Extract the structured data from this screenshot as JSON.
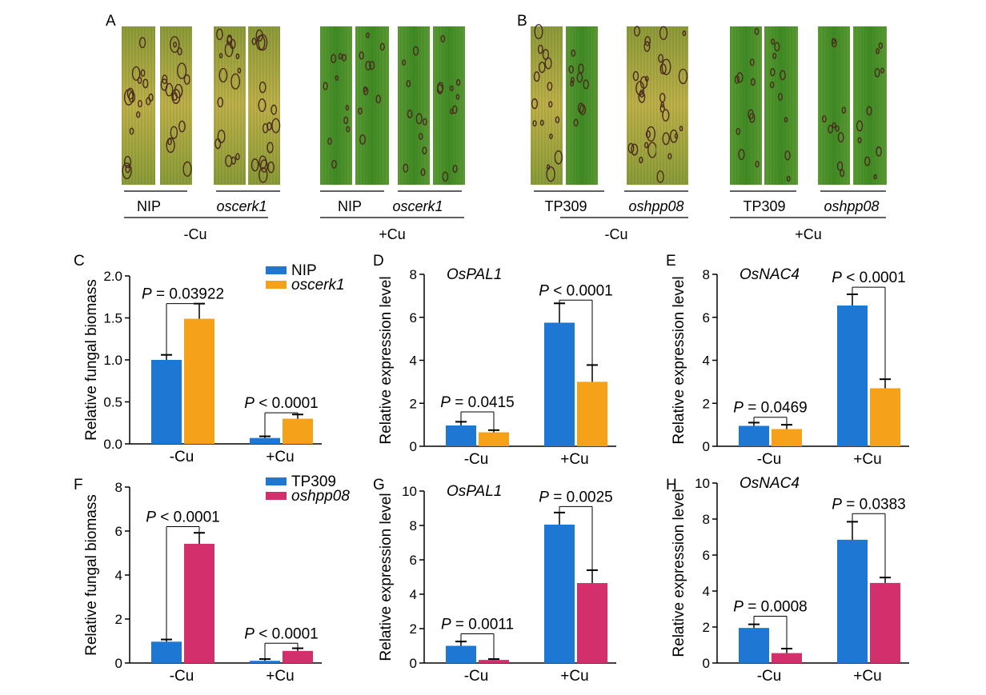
{
  "colors": {
    "blue": "#1f77d4",
    "orange": "#f6a11a",
    "magenta": "#d42f6d",
    "leaf_green": "#4f8f2c",
    "leaf_yellow": "#b7a64a",
    "lesion": "#4a2a1e"
  },
  "photos": {
    "A": {
      "label": "A",
      "groups": [
        {
          "genotype": "NIP",
          "italic": false
        },
        {
          "genotype": "oscerk1",
          "italic": true
        },
        {
          "genotype": "NIP",
          "italic": false
        },
        {
          "genotype": "oscerk1",
          "italic": true
        }
      ],
      "treatments": [
        "-Cu",
        "+Cu"
      ]
    },
    "B": {
      "label": "B",
      "groups": [
        {
          "genotype": "TP309",
          "italic": false
        },
        {
          "genotype": "oshpp08",
          "italic": true
        },
        {
          "genotype": "TP309",
          "italic": false
        },
        {
          "genotype": "oshpp08",
          "italic": true
        }
      ],
      "treatments": [
        "-Cu",
        "+Cu"
      ]
    }
  },
  "chart_data": [
    {
      "id": "C",
      "label": "C",
      "type": "bar",
      "title": "",
      "ylabel": "Relative fungal biomass",
      "categories": [
        "-Cu",
        "+Cu"
      ],
      "ylim": [
        0,
        2.0
      ],
      "yticks": [
        "0.0",
        "0.5",
        "1.0",
        "1.5",
        "2.0"
      ],
      "legend": [
        "NIP",
        "oscerk1"
      ],
      "series": [
        {
          "name": "NIP",
          "italic": false,
          "color": "#1f77d4",
          "values": [
            1.0,
            0.07
          ],
          "errors": [
            0.06,
            0.02
          ]
        },
        {
          "name": "oscerk1",
          "italic": true,
          "color": "#f6a11a",
          "values": [
            1.49,
            0.3
          ],
          "errors": [
            0.18,
            0.05
          ]
        }
      ],
      "annotations": [
        {
          "category": 0,
          "p": "P",
          "text": " = 0.03922",
          "level": 1.67
        },
        {
          "category": 1,
          "p": "P",
          "text": " < 0.0001",
          "level": 0.37
        }
      ]
    },
    {
      "id": "D",
      "label": "D",
      "type": "bar",
      "title": "OsPAL1",
      "ylabel": "Relative expression level",
      "categories": [
        "-Cu",
        "+Cu"
      ],
      "ylim": [
        0,
        8
      ],
      "yticks": [
        "0",
        "2",
        "4",
        "6",
        "8"
      ],
      "legend": [],
      "series": [
        {
          "name": "",
          "italic": false,
          "color": "#1f77d4",
          "values": [
            0.97,
            5.75
          ],
          "errors": [
            0.17,
            0.9
          ]
        },
        {
          "name": "",
          "italic": true,
          "color": "#f6a11a",
          "values": [
            0.65,
            3.0
          ],
          "errors": [
            0.1,
            0.78
          ]
        }
      ],
      "annotations": [
        {
          "category": 0,
          "p": "P",
          "text": " = 0.0415",
          "level": 1.6
        },
        {
          "category": 1,
          "p": "P",
          "text": " < 0.0001",
          "level": 6.8
        }
      ]
    },
    {
      "id": "E",
      "label": "E",
      "type": "bar",
      "title": "OsNAC4",
      "ylabel": "Relative expression level",
      "categories": [
        "-Cu",
        "+Cu"
      ],
      "ylim": [
        0,
        8
      ],
      "yticks": [
        "0",
        "2",
        "4",
        "6",
        "8"
      ],
      "legend": [],
      "series": [
        {
          "name": "",
          "italic": false,
          "color": "#1f77d4",
          "values": [
            0.95,
            6.55
          ],
          "errors": [
            0.15,
            0.52
          ]
        },
        {
          "name": "",
          "italic": true,
          "color": "#f6a11a",
          "values": [
            0.8,
            2.7
          ],
          "errors": [
            0.2,
            0.42
          ]
        }
      ],
      "annotations": [
        {
          "category": 0,
          "p": "P",
          "text": " = 0.0469",
          "level": 1.35
        },
        {
          "category": 1,
          "p": "P",
          "text": " < 0.0001",
          "level": 7.4
        }
      ]
    },
    {
      "id": "F",
      "label": "F",
      "type": "bar",
      "title": "",
      "ylabel": "Relative fungal biomass",
      "categories": [
        "-Cu",
        "+Cu"
      ],
      "ylim": [
        0,
        8
      ],
      "yticks": [
        "0",
        "2",
        "4",
        "6",
        "8"
      ],
      "legend": [
        "TP309",
        "oshpp08"
      ],
      "series": [
        {
          "name": "TP309",
          "italic": false,
          "color": "#1f77d4",
          "values": [
            0.97,
            0.1
          ],
          "errors": [
            0.1,
            0.08
          ]
        },
        {
          "name": "oshpp08",
          "italic": true,
          "color": "#d42f6d",
          "values": [
            5.42,
            0.55
          ],
          "errors": [
            0.5,
            0.12
          ]
        }
      ],
      "annotations": [
        {
          "category": 0,
          "p": "P",
          "text": " < 0.0001",
          "level": 6.2
        },
        {
          "category": 1,
          "p": "P",
          "text": " < 0.0001",
          "level": 0.9
        }
      ]
    },
    {
      "id": "G",
      "label": "G",
      "type": "bar",
      "title": "OsPAL1",
      "ylabel": "Relative expression level",
      "categories": [
        "-Cu",
        "+Cu"
      ],
      "ylim": [
        0,
        10
      ],
      "yticks": [
        "0",
        "2",
        "4",
        "6",
        "8",
        "10"
      ],
      "legend": [],
      "series": [
        {
          "name": "",
          "italic": false,
          "color": "#1f77d4",
          "values": [
            1.0,
            8.05
          ],
          "errors": [
            0.25,
            0.7
          ]
        },
        {
          "name": "",
          "italic": true,
          "color": "#d42f6d",
          "values": [
            0.18,
            4.65
          ],
          "errors": [
            0.05,
            0.75
          ]
        }
      ],
      "annotations": [
        {
          "category": 0,
          "p": "P",
          "text": " = 0.0011",
          "level": 1.7
        },
        {
          "category": 1,
          "p": "P",
          "text": " = 0.0025",
          "level": 9.1
        }
      ]
    },
    {
      "id": "H",
      "label": "H",
      "type": "bar",
      "title": "OsNAC4",
      "ylabel": "Relative expression level",
      "categories": [
        "-Cu",
        "+Cu"
      ],
      "ylim": [
        0,
        10
      ],
      "yticks": [
        "0",
        "2",
        "4",
        "6",
        "8",
        "10"
      ],
      "legend": [],
      "series": [
        {
          "name": "",
          "italic": false,
          "color": "#1f77d4",
          "values": [
            1.95,
            6.85
          ],
          "errors": [
            0.2,
            1.0
          ]
        },
        {
          "name": "",
          "italic": true,
          "color": "#d42f6d",
          "values": [
            0.55,
            4.45
          ],
          "errors": [
            0.25,
            0.3
          ]
        }
      ],
      "annotations": [
        {
          "category": 0,
          "p": "P",
          "text": " = 0.0008",
          "level": 2.6
        },
        {
          "category": 1,
          "p": "P",
          "text": " = 0.0383",
          "level": 8.3
        }
      ]
    }
  ]
}
